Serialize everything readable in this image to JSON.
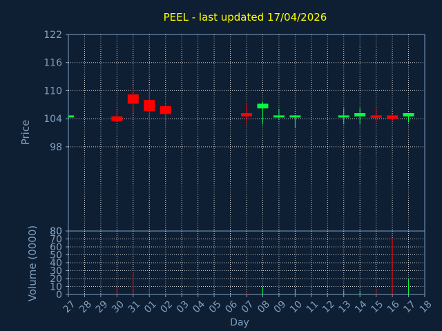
{
  "colors": {
    "background": "#0f1f33",
    "title": "#ffff00",
    "axis_text": "#7f9fbf",
    "grid": "#ffffff",
    "up": "#00ff40",
    "down": "#ff0000"
  },
  "chart_data": [
    {
      "type": "candlestick",
      "title": "PEEL - last updated 17/04/2026",
      "ylabel": "Price",
      "ylim": [
        80,
        122
      ],
      "yticks": [
        80,
        98,
        104,
        110,
        116,
        122
      ],
      "categories": [
        "27",
        "28",
        "29",
        "30",
        "31",
        "01",
        "02",
        "03",
        "04",
        "05",
        "06",
        "07",
        "08",
        "09",
        "10",
        "11",
        "12",
        "13",
        "14",
        "15",
        "16",
        "17",
        "18"
      ],
      "grid": true,
      "candles": [
        {
          "day": "27",
          "open": 104.3,
          "close": 104.7,
          "high": 104.7,
          "low": 104.3
        },
        {
          "day": "30",
          "open": 104.5,
          "close": 103.5,
          "high": 106.0,
          "low": 103.5
        },
        {
          "day": "31",
          "open": 109.2,
          "close": 107.2,
          "high": 111.2,
          "low": 105.2
        },
        {
          "day": "01",
          "open": 108.0,
          "close": 105.6,
          "high": 111.2,
          "low": 102.8
        },
        {
          "day": "02",
          "open": 106.7,
          "close": 105.0,
          "high": 107.2,
          "low": 102.8
        },
        {
          "day": "07",
          "open": 105.2,
          "close": 104.5,
          "high": 107.4,
          "low": 102.8
        },
        {
          "day": "08",
          "open": 106.2,
          "close": 107.2,
          "high": 107.6,
          "low": 102.8
        },
        {
          "day": "09",
          "open": 104.5,
          "close": 104.7,
          "high": 106.0,
          "low": 104.0
        },
        {
          "day": "10",
          "open": 104.5,
          "close": 104.7,
          "high": 104.7,
          "low": 102.0
        },
        {
          "day": "13",
          "open": 104.5,
          "close": 104.7,
          "high": 106.2,
          "low": 102.8
        },
        {
          "day": "14",
          "open": 104.5,
          "close": 105.2,
          "high": 106.2,
          "low": 102.8
        },
        {
          "day": "15",
          "open": 104.7,
          "close": 104.2,
          "high": 106.2,
          "low": 103.2
        },
        {
          "day": "16",
          "open": 104.7,
          "close": 104.0,
          "high": 105.0,
          "low": 103.6
        },
        {
          "day": "17",
          "open": 104.5,
          "close": 105.2,
          "high": 105.2,
          "low": 103.2
        }
      ]
    },
    {
      "type": "bar",
      "ylabel": "Volume (0000)",
      "xlabel": "Day",
      "ylim": [
        0,
        80
      ],
      "yticks": [
        0,
        10,
        20,
        30,
        40,
        50,
        60,
        70,
        80
      ],
      "categories": [
        "27",
        "28",
        "29",
        "30",
        "31",
        "01",
        "02",
        "03",
        "04",
        "05",
        "06",
        "07",
        "08",
        "09",
        "10",
        "11",
        "12",
        "13",
        "14",
        "15",
        "16",
        "17",
        "18"
      ],
      "grid": true,
      "bars": [
        {
          "day": "30",
          "value": 9,
          "direction": "down"
        },
        {
          "day": "31",
          "value": 28,
          "direction": "down"
        },
        {
          "day": "01",
          "value": 12,
          "direction": "down"
        },
        {
          "day": "02",
          "value": 2,
          "direction": "down"
        },
        {
          "day": "07",
          "value": 4,
          "direction": "down"
        },
        {
          "day": "08",
          "value": 9,
          "direction": "up"
        },
        {
          "day": "09",
          "value": 1,
          "direction": "up"
        },
        {
          "day": "10",
          "value": 6,
          "direction": "up"
        },
        {
          "day": "13",
          "value": 5,
          "direction": "up"
        },
        {
          "day": "14",
          "value": 4,
          "direction": "up"
        },
        {
          "day": "15",
          "value": 7,
          "direction": "down"
        },
        {
          "day": "16",
          "value": 71,
          "direction": "down"
        },
        {
          "day": "17",
          "value": 20,
          "direction": "up"
        }
      ]
    }
  ]
}
